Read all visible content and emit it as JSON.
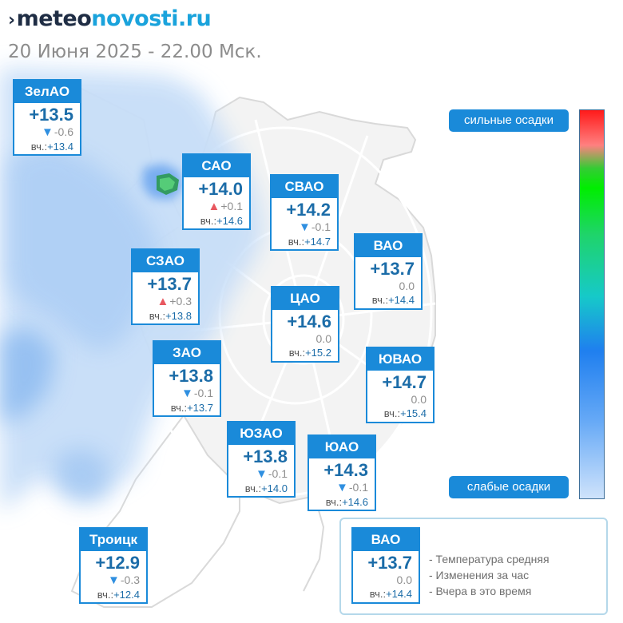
{
  "header": {
    "logo_prefix": "meteo",
    "logo_suffix": "novosti.ru",
    "subtitle": "20 Июня 2025 - 22.00 Мск."
  },
  "colors": {
    "card_blue": "#1a8ad9",
    "temp_text": "#1b6ca8",
    "arrow_up": "#e8575f",
    "arrow_down": "#2f8fe0",
    "precip_light": "#cfe3fb",
    "precip_heavy": "#ff1a1a"
  },
  "districts": [
    {
      "name": "ЗелАО",
      "temp": "+13.5",
      "trend": "down",
      "change": "-0.6",
      "yesterday_label": "вч.:",
      "yesterday": "+13.4"
    },
    {
      "name": "САО",
      "temp": "+14.0",
      "trend": "up",
      "change": "+0.1",
      "yesterday_label": "вч.:",
      "yesterday": "+14.6"
    },
    {
      "name": "СВАО",
      "temp": "+14.2",
      "trend": "down",
      "change": "-0.1",
      "yesterday_label": "вч.:",
      "yesterday": "+14.7"
    },
    {
      "name": "ВАО",
      "temp": "+13.7",
      "trend": "none",
      "change": "0.0",
      "yesterday_label": "вч.:",
      "yesterday": "+14.4"
    },
    {
      "name": "СЗАО",
      "temp": "+13.7",
      "trend": "up",
      "change": "+0.3",
      "yesterday_label": "вч.:",
      "yesterday": "+13.8"
    },
    {
      "name": "ЦАО",
      "temp": "+14.6",
      "trend": "none",
      "change": "0.0",
      "yesterday_label": "вч.:",
      "yesterday": "+15.2"
    },
    {
      "name": "ЗАО",
      "temp": "+13.8",
      "trend": "down",
      "change": "-0.1",
      "yesterday_label": "вч.:",
      "yesterday": "+13.7"
    },
    {
      "name": "ЮВАО",
      "temp": "+14.7",
      "trend": "none",
      "change": "0.0",
      "yesterday_label": "вч.:",
      "yesterday": "+15.4"
    },
    {
      "name": "ЮЗАО",
      "temp": "+13.8",
      "trend": "down",
      "change": "-0.1",
      "yesterday_label": "вч.:",
      "yesterday": "+14.0"
    },
    {
      "name": "ЮАО",
      "temp": "+14.3",
      "trend": "down",
      "change": "-0.1",
      "yesterday_label": "вч.:",
      "yesterday": "+14.6"
    },
    {
      "name": "Троицк",
      "temp": "+12.9",
      "trend": "down",
      "change": "-0.3",
      "yesterday_label": "вч.:",
      "yesterday": "+12.4"
    }
  ],
  "precip_scale": {
    "top_label": "сильные осадки",
    "bottom_label": "слабые осадки"
  },
  "legend": {
    "sample": {
      "name": "ВАО",
      "temp": "+13.7",
      "trend": "none",
      "change": "0.0",
      "yesterday_label": "вч.:",
      "yesterday": "+14.4"
    },
    "lines": [
      "- Температура средняя",
      "- Изменения за час",
      "- Вчера в это время"
    ]
  }
}
